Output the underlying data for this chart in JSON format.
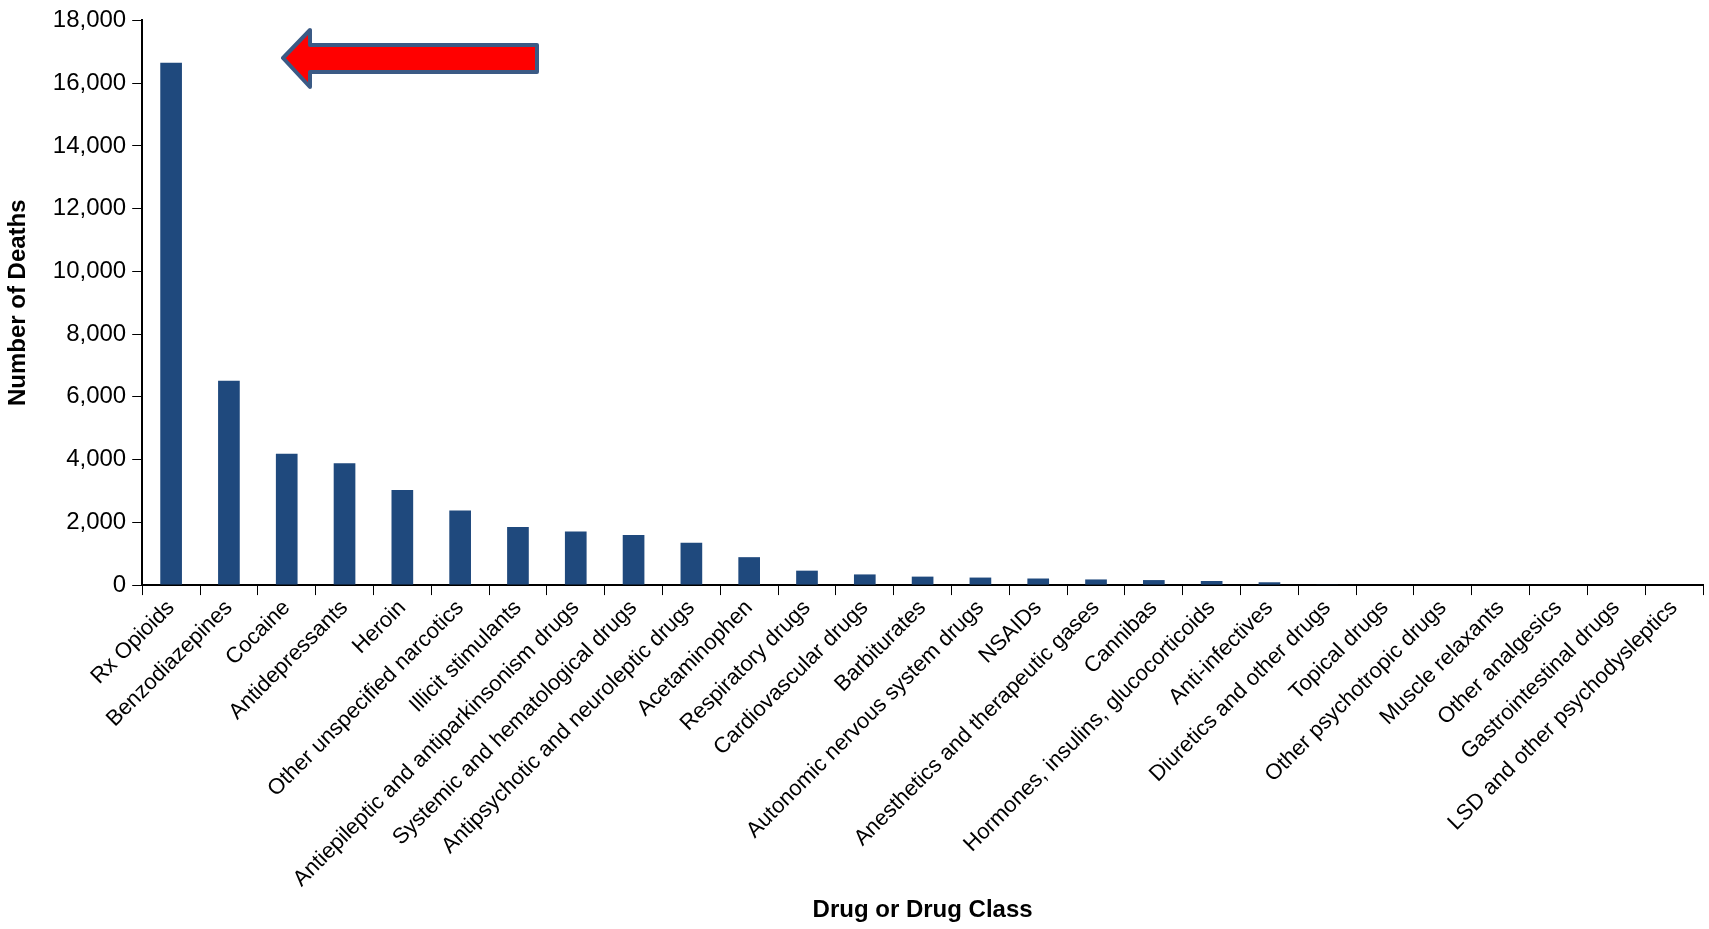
{
  "chart_data": {
    "type": "bar",
    "xlabel": "Drug or Drug Class",
    "ylabel": "Number of Deaths",
    "categories": [
      "Rx Opioids",
      "Benzodiazepines",
      "Cocaine",
      "Antidepressants",
      "Heroin",
      "Other unspecified narcotics",
      "Illicit stimulants",
      "Antiepileptic and antiparkinsonism drugs",
      "Systemic and hematological drugs",
      "Antipsychotic and neuroleptic drugs",
      "Acetaminophen",
      "Respiratory drugs",
      "Cardiovascular drugs",
      "Barbiturates",
      "Autonomic nervous system drugs",
      "NSAIDs",
      "Anesthetics and therapeutic gases",
      "Cannibas",
      "Hormones, insulins, glucocorticoids",
      "Anti-infectives",
      "Diuretics and other drugs",
      "Topical drugs",
      "Other psychotropic drugs",
      "Muscle relaxants",
      "Other analgesics",
      "Gastrointestinal drugs",
      "LSD and other psychodysleptics"
    ],
    "values": [
      16650,
      6510,
      4190,
      3880,
      3030,
      2380,
      1850,
      1710,
      1600,
      1350,
      890,
      460,
      340,
      270,
      240,
      210,
      180,
      160,
      130,
      90,
      20,
      null,
      null,
      null,
      null,
      0,
      0
    ],
    "color": "#1f497d",
    "ylim": [
      0,
      18000
    ],
    "yticks": [
      {
        "value": 0,
        "label": "0"
      },
      {
        "value": 2000,
        "label": "2,000"
      },
      {
        "value": 4000,
        "label": "4,000"
      },
      {
        "value": 6000,
        "label": "6,000"
      },
      {
        "value": 8000,
        "label": "8,000"
      },
      {
        "value": 10000,
        "label": "10,000"
      },
      {
        "value": 12000,
        "label": "12,000"
      },
      {
        "value": 14000,
        "label": "14,000"
      },
      {
        "value": 16000,
        "label": "16,000"
      },
      {
        "value": 18000,
        "label": "18,000"
      }
    ],
    "grid": false,
    "legend": false
  }
}
